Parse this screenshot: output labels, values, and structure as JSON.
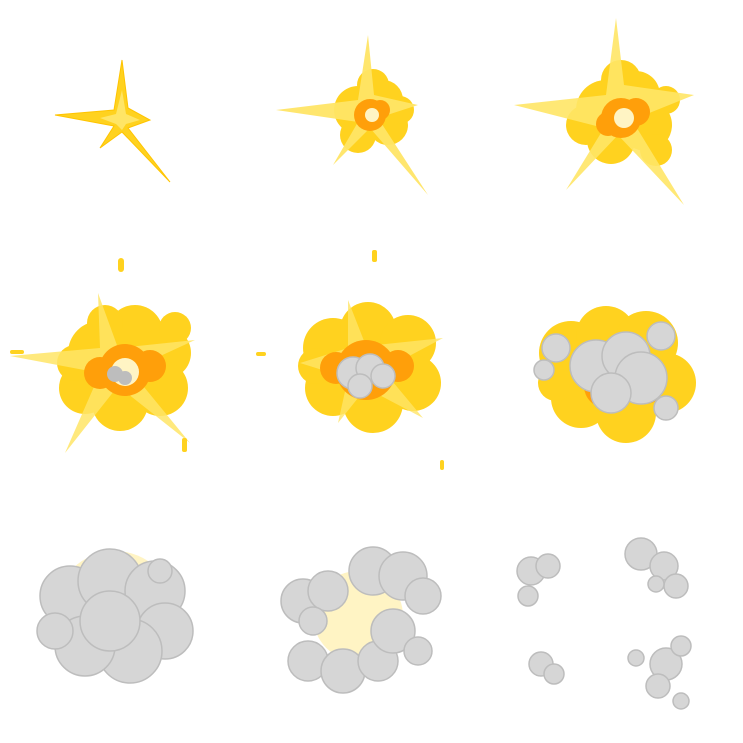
{
  "sprite_sheet": {
    "columns": 3,
    "rows": 3,
    "frames": [
      {
        "stage": "flash-star"
      },
      {
        "stage": "ignition"
      },
      {
        "stage": "fireball-growing"
      },
      {
        "stage": "fireball-full"
      },
      {
        "stage": "fireball-smoke-start"
      },
      {
        "stage": "smoke-over-fire"
      },
      {
        "stage": "smoke-cloud"
      },
      {
        "stage": "smoke-breaking"
      },
      {
        "stage": "smoke-dissipating"
      }
    ]
  },
  "colors": {
    "yellow": "#FFD21F",
    "yellow_light": "#FFE566",
    "orange": "#FF9F0A",
    "core": "#FFF4C4",
    "smoke": "#D6D6D6",
    "smoke_dark": "#BDBDBD",
    "smoke_light": "#E6E6E6"
  }
}
